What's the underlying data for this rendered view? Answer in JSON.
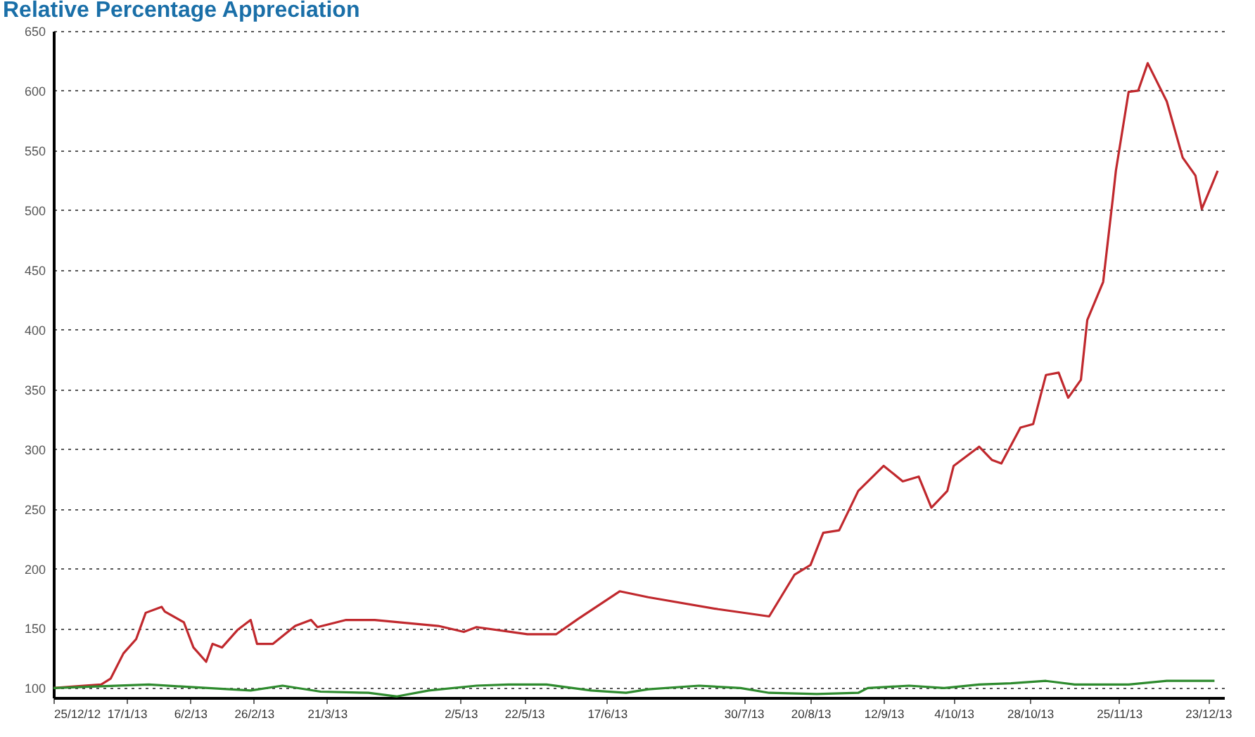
{
  "chart_data": {
    "type": "line",
    "title": "Relative Percentage Appreciation",
    "x": [
      "2012-12-25",
      "2012-12-30",
      "2013-01-09",
      "2013-01-12",
      "2013-01-16",
      "2013-01-20",
      "2013-01-23",
      "2013-01-28",
      "2013-01-29",
      "2013-02-04",
      "2013-02-07",
      "2013-02-11",
      "2013-02-13",
      "2013-02-16",
      "2013-02-21",
      "2013-02-25",
      "2013-02-27",
      "2013-03-04",
      "2013-03-11",
      "2013-03-16",
      "2013-03-18",
      "2013-03-27",
      "2013-04-05",
      "2013-04-25",
      "2013-05-03",
      "2013-05-07",
      "2013-05-23",
      "2013-06-01",
      "2013-06-08",
      "2013-06-21",
      "2013-06-30",
      "2013-07-22",
      "2013-08-07",
      "2013-08-15",
      "2013-08-20",
      "2013-08-24",
      "2013-08-29",
      "2013-09-04",
      "2013-09-12",
      "2013-09-18",
      "2013-09-23",
      "2013-09-27",
      "2013-10-02",
      "2013-10-04",
      "2013-10-12",
      "2013-10-16",
      "2013-10-19",
      "2013-10-25",
      "2013-10-29",
      "2013-11-02",
      "2013-11-06",
      "2013-11-09",
      "2013-11-13",
      "2013-11-15",
      "2013-11-20",
      "2013-11-23",
      "2013-11-24",
      "2013-11-28",
      "2013-12-01",
      "2013-12-04",
      "2013-12-10",
      "2013-12-15",
      "2013-12-19",
      "2013-12-21",
      "2013-12-24",
      "2013-12-26"
    ],
    "series": [
      {
        "color": "#c0282d",
        "values": [
          100,
          101,
          103,
          108,
          129,
          141,
          163,
          168,
          164,
          155,
          134,
          122,
          137,
          134,
          149,
          157,
          137,
          137,
          152,
          157,
          151,
          157,
          157,
          152,
          147,
          151,
          145,
          145,
          158,
          181,
          176,
          166,
          160,
          195,
          203,
          230,
          232,
          265,
          286,
          273,
          277,
          251,
          265,
          286,
          302,
          291,
          288,
          318,
          321,
          362,
          364,
          343,
          358,
          408,
          440,
          509,
          533,
          599,
          600,
          623,
          591,
          544,
          529,
          501,
          520,
          533
        ]
      },
      {
        "color": "#2e8b2e",
        "x": [
          "2012-12-25",
          "2013-01-24",
          "2013-02-05",
          "2013-02-25",
          "2013-03-07",
          "2013-03-19",
          "2013-04-03",
          "2013-04-12",
          "2013-04-22",
          "2013-05-07",
          "2013-05-17",
          "2013-05-29",
          "2013-06-12",
          "2013-06-23",
          "2013-06-30",
          "2013-07-16",
          "2013-07-29",
          "2013-08-07",
          "2013-08-22",
          "2013-09-04",
          "2013-09-07",
          "2013-09-20",
          "2013-10-01",
          "2013-10-12",
          "2013-10-22",
          "2013-11-02",
          "2013-11-11",
          "2013-11-28",
          "2013-12-10",
          "2013-12-25"
        ],
        "values": [
          100,
          103,
          101,
          98,
          102,
          97,
          96,
          93,
          98,
          102,
          103,
          103,
          98,
          96,
          99,
          102,
          100,
          96,
          95,
          96,
          100,
          102,
          100,
          103,
          104,
          106,
          103,
          103,
          106,
          106
        ]
      }
    ],
    "xlim": [
      "2012-12-25",
      "2013-12-28"
    ],
    "xticks": [
      {
        "value": "2012-12-25",
        "label": "25/12/12"
      },
      {
        "value": "2013-01-17",
        "label": "17/1/13"
      },
      {
        "value": "2013-02-06",
        "label": "6/2/13"
      },
      {
        "value": "2013-02-26",
        "label": "26/2/13"
      },
      {
        "value": "2013-03-21",
        "label": "21/3/13"
      },
      {
        "value": "2013-05-02",
        "label": "2/5/13"
      },
      {
        "value": "2013-05-22",
        "label": "22/5/13"
      },
      {
        "value": "2013-06-17",
        "label": "17/6/13"
      },
      {
        "value": "2013-07-30",
        "label": "30/7/13"
      },
      {
        "value": "2013-08-20",
        "label": "20/8/13"
      },
      {
        "value": "2013-09-12",
        "label": "12/9/13"
      },
      {
        "value": "2013-10-04",
        "label": "4/10/13"
      },
      {
        "value": "2013-10-28",
        "label": "28/10/13"
      },
      {
        "value": "2013-11-25",
        "label": "25/11/13"
      },
      {
        "value": "2013-12-23",
        "label": "23/12/13"
      }
    ],
    "ylim": [
      92,
      650
    ],
    "yticks": [
      100,
      150,
      200,
      250,
      300,
      350,
      400,
      450,
      500,
      550,
      600,
      650
    ],
    "grid": "y"
  }
}
